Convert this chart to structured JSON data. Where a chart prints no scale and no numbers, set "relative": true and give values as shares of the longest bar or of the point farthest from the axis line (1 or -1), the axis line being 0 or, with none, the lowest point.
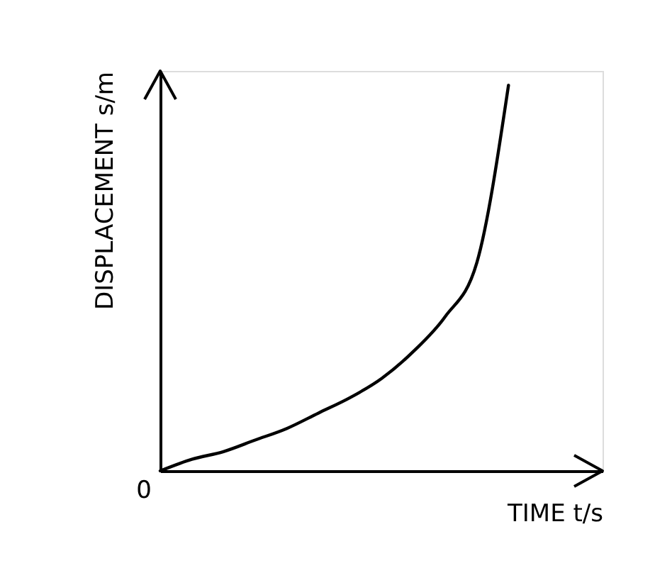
{
  "chart_data": {
    "type": "line",
    "relative": true,
    "xlabel": "TIME t/s",
    "ylabel": "DISPLACEMENT s/m",
    "categories": [
      null,
      null,
      null,
      null,
      null,
      null,
      null,
      null,
      null,
      null,
      null,
      null
    ],
    "values": [
      0,
      0.03,
      0.05,
      0.08,
      0.11,
      0.15,
      0.19,
      0.24,
      0.31,
      0.4,
      0.54,
      1.0
    ],
    "color": "#000000",
    "annotations": [
      "0"
    ]
  }
}
